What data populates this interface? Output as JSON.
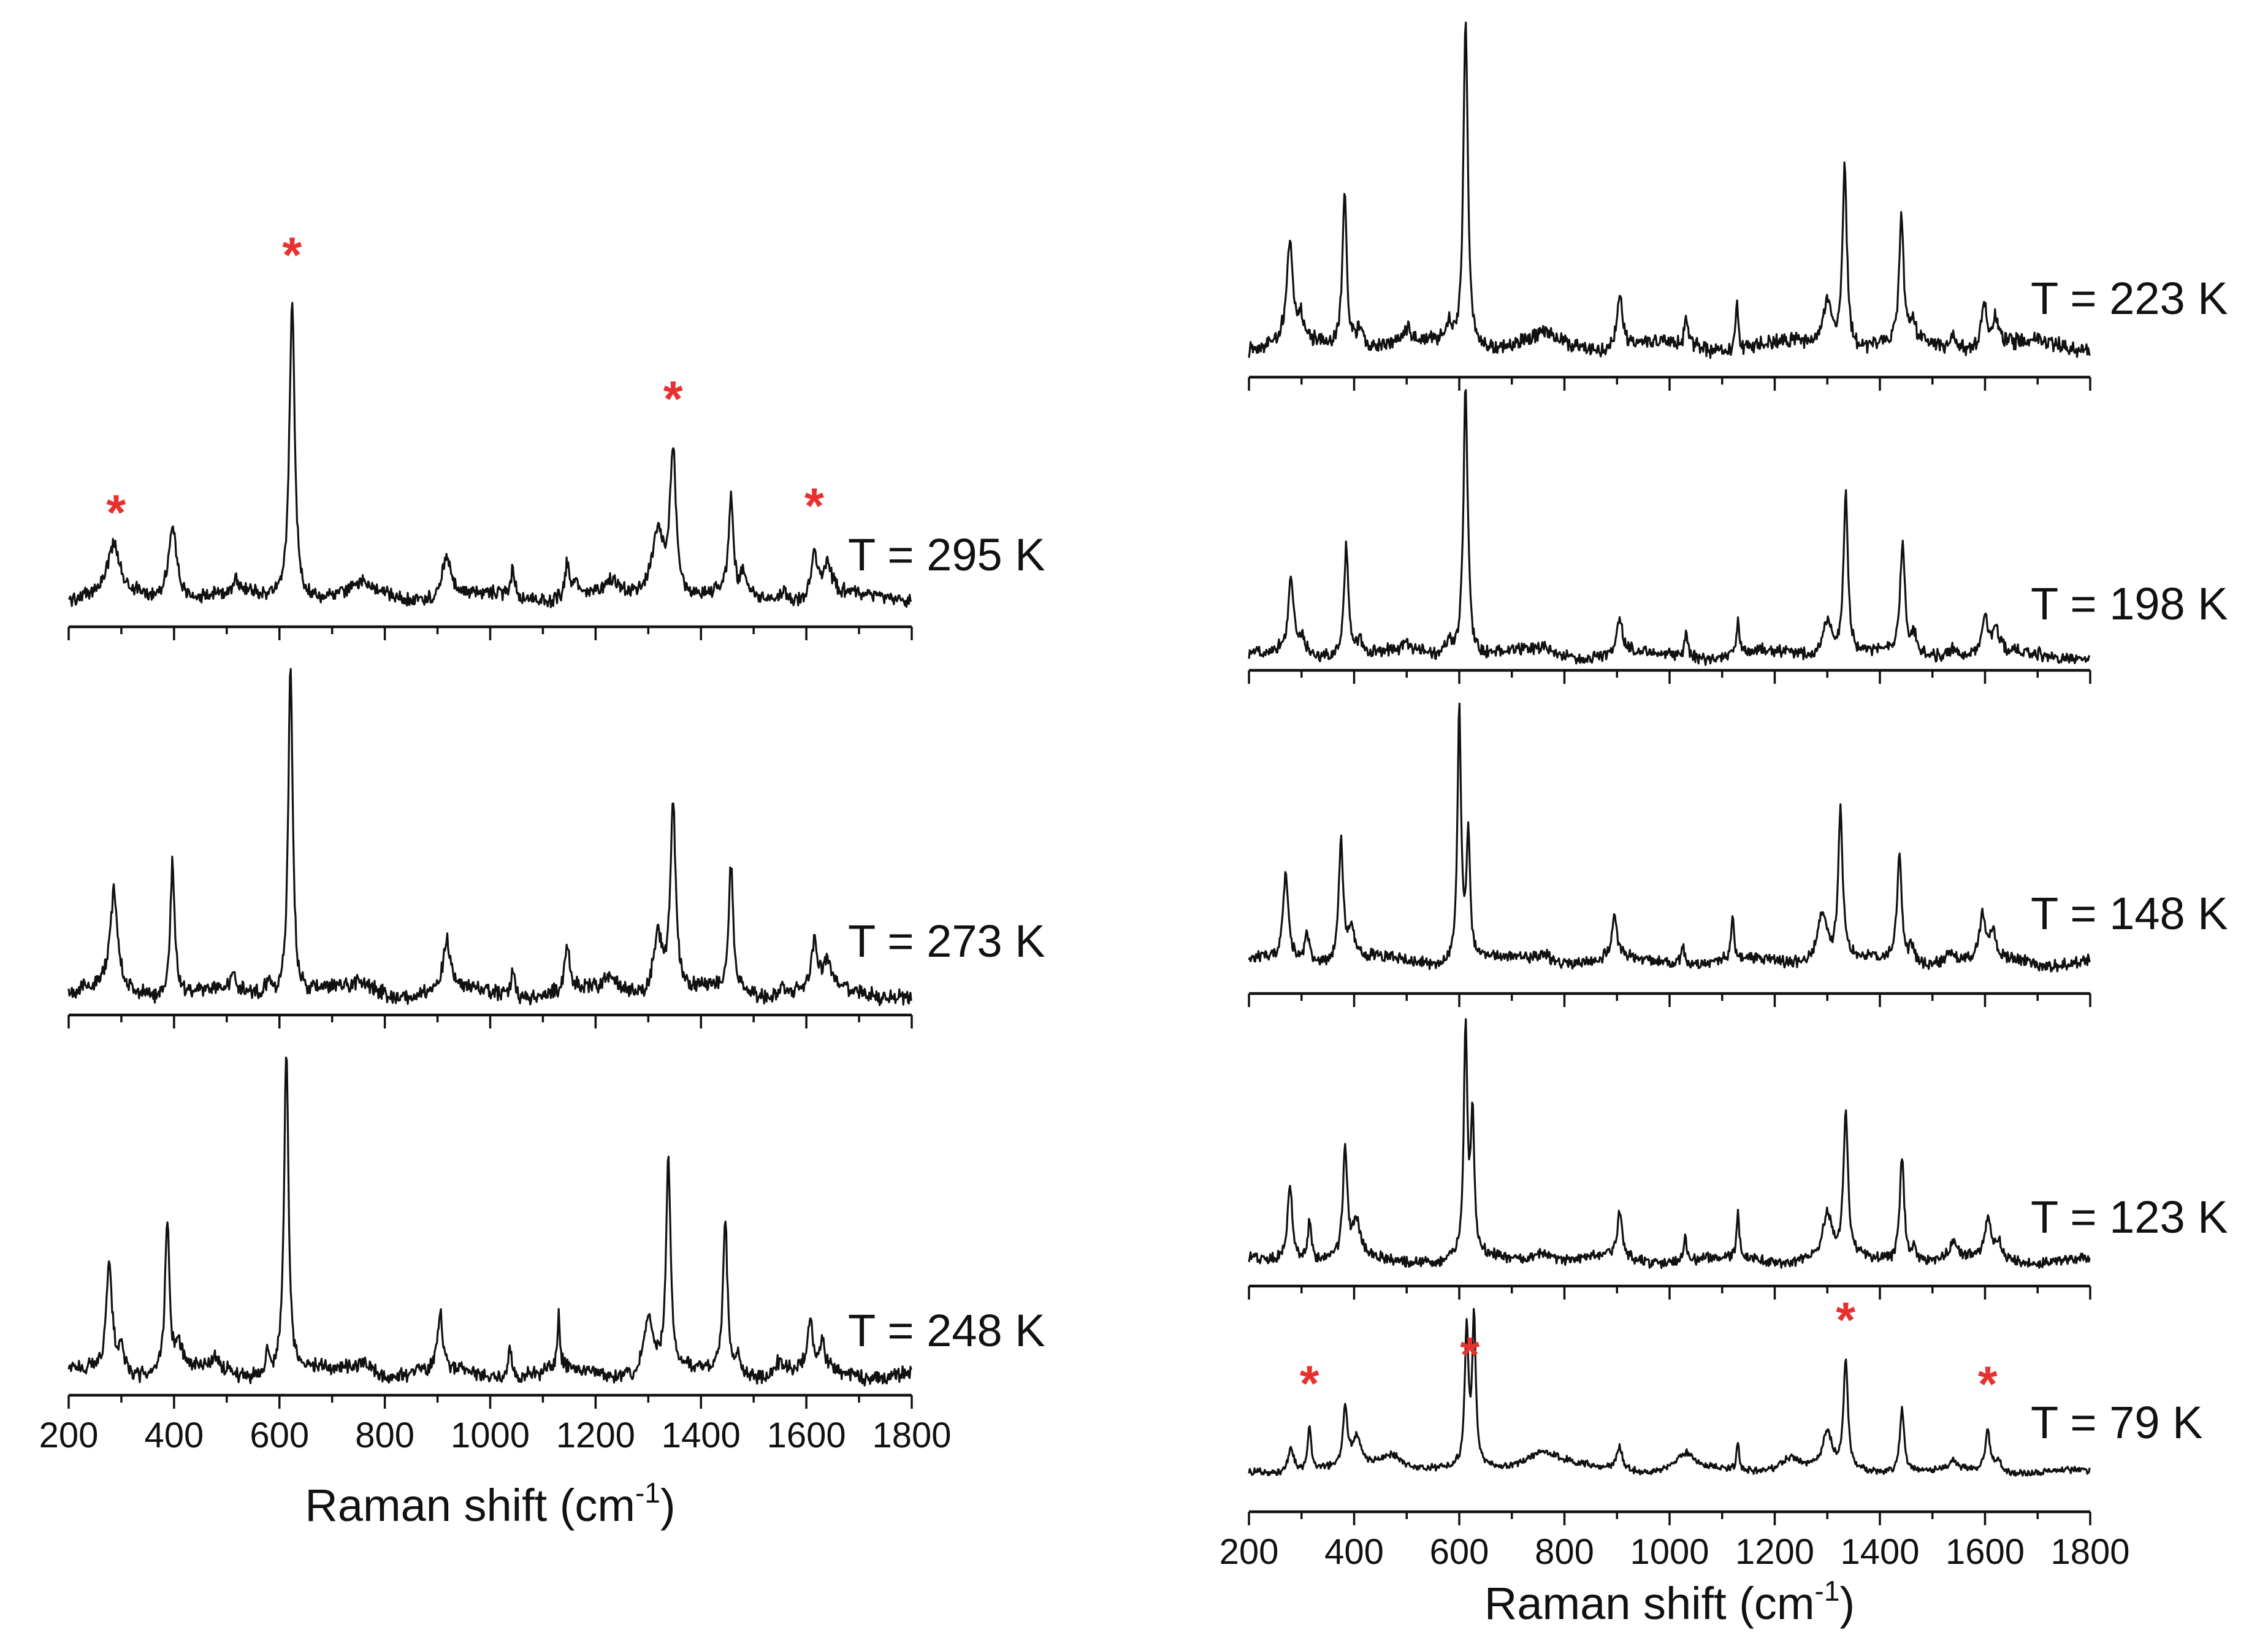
{
  "chart_data": {
    "type": "line",
    "title": "",
    "xlabel": "Raman shift (cm",
    "xlabel_sup": "-1",
    "xlabel_close": ")",
    "xlim": [
      200,
      1800
    ],
    "xticks": [
      "200",
      "400",
      "600",
      "800",
      "1000",
      "1200",
      "1400",
      "1600",
      "1800"
    ],
    "ylabel": "",
    "grid": false,
    "marker_color": "#e8312f",
    "marker_symbol": "*",
    "panels": [
      {
        "name": "left",
        "series": [
          {
            "label": "T = 295 K",
            "tick_labels_shown": false,
            "peaks": [
              [
                285,
                0.16,
                14
              ],
              [
                397,
                0.24,
                10
              ],
              [
                518,
                0.04,
                8
              ],
              [
                624,
                1.0,
                6
              ],
              [
                760,
                0.04,
                20
              ],
              [
                917,
                0.14,
                10
              ],
              [
                1043,
                0.1,
                4
              ],
              [
                1146,
                0.12,
                5
              ],
              [
                1163,
                0.05,
                5
              ],
              [
                1230,
                0.04,
                15
              ],
              [
                1318,
                0.22,
                14
              ],
              [
                1347,
                0.48,
                7
              ],
              [
                1457,
                0.32,
                5
              ],
              [
                1480,
                0.06,
                6
              ],
              [
                1557,
                0.03,
                8
              ],
              [
                1615,
                0.15,
                6
              ],
              [
                1640,
                0.11,
                10
              ]
            ],
            "markers": [
              290,
              624,
              1347,
              1615
            ]
          },
          {
            "label": "T = 273 K",
            "tick_labels_shown": false,
            "peaks": [
              [
                286,
                0.29,
                9
              ],
              [
                397,
                0.4,
                5
              ],
              [
                512,
                0.04,
                6
              ],
              [
                580,
                0.05,
                6
              ],
              [
                621,
                1.0,
                5
              ],
              [
                760,
                0.03,
                20
              ],
              [
                917,
                0.15,
                8
              ],
              [
                1043,
                0.09,
                4
              ],
              [
                1146,
                0.14,
                5
              ],
              [
                1230,
                0.04,
                15
              ],
              [
                1318,
                0.18,
                10
              ],
              [
                1347,
                0.56,
                6
              ],
              [
                1457,
                0.38,
                5
              ],
              [
                1557,
                0.03,
                8
              ],
              [
                1615,
                0.14,
                7
              ],
              [
                1640,
                0.09,
                8
              ]
            ],
            "markers": []
          },
          {
            "label": "T = 248 K",
            "tick_labels_shown": true,
            "peaks": [
              [
                277,
                0.33,
                7
              ],
              [
                300,
                0.08,
                6
              ],
              [
                387,
                0.47,
                5
              ],
              [
                410,
                0.07,
                8
              ],
              [
                480,
                0.04,
                8
              ],
              [
                578,
                0.07,
                5
              ],
              [
                613,
                1.0,
                5
              ],
              [
                760,
                0.04,
                20
              ],
              [
                905,
                0.17,
                6
              ],
              [
                1037,
                0.1,
                4
              ],
              [
                1130,
                0.17,
                3
              ],
              [
                1300,
                0.18,
                10
              ],
              [
                1338,
                0.65,
                5
              ],
              [
                1446,
                0.47,
                5
              ],
              [
                1470,
                0.06,
                6
              ],
              [
                1550,
                0.04,
                8
              ],
              [
                1607,
                0.16,
                5
              ],
              [
                1630,
                0.08,
                7
              ]
            ],
            "markers": []
          }
        ]
      },
      {
        "name": "right",
        "series": [
          {
            "label": "T = 223 K",
            "tick_labels_shown": false,
            "peaks": [
              [
                278,
                0.31,
                7
              ],
              [
                300,
                0.06,
                6
              ],
              [
                382,
                0.47,
                5
              ],
              [
                410,
                0.06,
                8
              ],
              [
                500,
                0.04,
                8
              ],
              [
                580,
                0.06,
                6
              ],
              [
                612,
                1.0,
                5
              ],
              [
                760,
                0.03,
                20
              ],
              [
                905,
                0.16,
                6
              ],
              [
                1032,
                0.08,
                4
              ],
              [
                1128,
                0.14,
                3
              ],
              [
                1300,
                0.14,
                10
              ],
              [
                1333,
                0.55,
                5
              ],
              [
                1441,
                0.38,
                5
              ],
              [
                1462,
                0.06,
                6
              ],
              [
                1540,
                0.04,
                8
              ],
              [
                1598,
                0.14,
                6
              ],
              [
                1620,
                0.08,
                7
              ]
            ],
            "markers": []
          },
          {
            "label": "T = 198 K",
            "tick_labels_shown": false,
            "peaks": [
              [
                280,
                0.28,
                6
              ],
              [
                300,
                0.05,
                6
              ],
              [
                385,
                0.42,
                5
              ],
              [
                410,
                0.05,
                8
              ],
              [
                500,
                0.03,
                8
              ],
              [
                580,
                0.06,
                6
              ],
              [
                612,
                1.0,
                5
              ],
              [
                760,
                0.02,
                20
              ],
              [
                905,
                0.14,
                6
              ],
              [
                1032,
                0.08,
                4
              ],
              [
                1130,
                0.13,
                3
              ],
              [
                1300,
                0.14,
                10
              ],
              [
                1335,
                0.6,
                5
              ],
              [
                1443,
                0.41,
                5
              ],
              [
                1465,
                0.07,
                6
              ],
              [
                1540,
                0.04,
                8
              ],
              [
                1600,
                0.14,
                6
              ],
              [
                1620,
                0.09,
                7
              ]
            ],
            "markers": []
          },
          {
            "label": "T = 148 K",
            "tick_labels_shown": false,
            "peaks": [
              [
                270,
                0.34,
                6
              ],
              [
                310,
                0.12,
                5
              ],
              [
                375,
                0.47,
                5
              ],
              [
                395,
                0.12,
                8
              ],
              [
                600,
                1.0,
                4
              ],
              [
                617,
                0.5,
                4
              ],
              [
                760,
                0.04,
                20
              ],
              [
                895,
                0.17,
                6
              ],
              [
                1025,
                0.08,
                4
              ],
              [
                1120,
                0.16,
                3
              ],
              [
                1290,
                0.2,
                10
              ],
              [
                1325,
                0.6,
                5
              ],
              [
                1437,
                0.43,
                5
              ],
              [
                1460,
                0.06,
                6
              ],
              [
                1535,
                0.05,
                8
              ],
              [
                1595,
                0.17,
                6
              ],
              [
                1615,
                0.1,
                7
              ]
            ],
            "markers": []
          },
          {
            "label": "T = 123 K",
            "tick_labels_shown": false,
            "peaks": [
              [
                278,
                0.33,
                6
              ],
              [
                315,
                0.18,
                4
              ],
              [
                383,
                0.47,
                5
              ],
              [
                405,
                0.15,
                8
              ],
              [
                612,
                1.0,
                4
              ],
              [
                625,
                0.6,
                4
              ],
              [
                760,
                0.05,
                20
              ],
              [
                905,
                0.19,
                6
              ],
              [
                1030,
                0.1,
                4
              ],
              [
                1130,
                0.19,
                3
              ],
              [
                1300,
                0.2,
                10
              ],
              [
                1335,
                0.62,
                5
              ],
              [
                1442,
                0.46,
                5
              ],
              [
                1465,
                0.06,
                6
              ],
              [
                1540,
                0.07,
                8
              ],
              [
                1605,
                0.18,
                6
              ],
              [
                1625,
                0.08,
                7
              ]
            ],
            "markers": []
          },
          {
            "label": "T = 79 K",
            "tick_labels_shown": true,
            "peaks": [
              [
                280,
                0.18,
                6
              ],
              [
                315,
                0.3,
                4
              ],
              [
                383,
                0.4,
                5
              ],
              [
                405,
                0.2,
                10
              ],
              [
                470,
                0.12,
                30
              ],
              [
                614,
                0.95,
                4
              ],
              [
                628,
                1.0,
                4
              ],
              [
                760,
                0.14,
                45
              ],
              [
                905,
                0.16,
                6
              ],
              [
                1030,
                0.12,
                20
              ],
              [
                1130,
                0.2,
                3
              ],
              [
                1230,
                0.1,
                25
              ],
              [
                1300,
                0.25,
                10
              ],
              [
                1335,
                0.72,
                5
              ],
              [
                1442,
                0.44,
                5
              ],
              [
                1540,
                0.07,
                8
              ],
              [
                1605,
                0.3,
                5
              ],
              [
                1625,
                0.08,
                7
              ]
            ],
            "markers": [
              315,
              620,
              1335,
              1605
            ]
          }
        ]
      }
    ]
  }
}
